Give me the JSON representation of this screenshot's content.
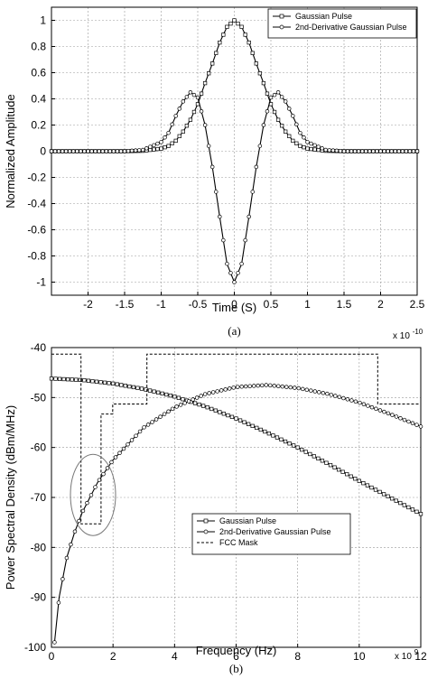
{
  "chart_data": [
    {
      "type": "line",
      "title": "",
      "xlabel": "Time (S)",
      "ylabel": "Normalized Amplitude",
      "x_exponent_label": "x 10",
      "x_exponent": "-10",
      "xlim": [
        -2.5,
        2.5
      ],
      "ylim": [
        -1.1,
        1.1
      ],
      "xticks": [
        -2,
        -1.5,
        -1,
        -0.5,
        0,
        0.5,
        1,
        1.5,
        2,
        2.5
      ],
      "xtick_labels": [
        "-2",
        "-1.5",
        "-1",
        "-0.5",
        "0",
        "0.5",
        "1",
        "1.5",
        "2",
        "2.5"
      ],
      "yticks": [
        -1,
        -0.8,
        -0.6,
        -0.4,
        -0.2,
        0,
        0.2,
        0.4,
        0.6,
        0.8,
        1
      ],
      "ytick_labels": [
        "-1",
        "-0.8",
        "-0.6",
        "-0.4",
        "-0.2",
        "0",
        "0.2",
        "0.4",
        "0.6",
        "0.8",
        "1"
      ],
      "grid": true,
      "legend_position": "top-right",
      "caption": "(a)",
      "series": [
        {
          "name": "Gaussian Pulse",
          "marker": "square",
          "x": [
            -2.5,
            -2.0,
            -1.5,
            -1.25,
            -1.0,
            -0.9,
            -0.8,
            -0.7,
            -0.6,
            -0.5,
            -0.4,
            -0.3,
            -0.2,
            -0.1,
            0.0,
            0.1,
            0.2,
            0.3,
            0.4,
            0.5,
            0.6,
            0.7,
            0.8,
            0.9,
            1.0,
            1.25,
            1.5,
            2.0,
            2.5
          ],
          "y": [
            0.0,
            0.0,
            0.0,
            0.003,
            0.02,
            0.04,
            0.08,
            0.15,
            0.24,
            0.36,
            0.52,
            0.67,
            0.83,
            0.95,
            1.0,
            0.95,
            0.83,
            0.67,
            0.52,
            0.36,
            0.24,
            0.15,
            0.08,
            0.04,
            0.02,
            0.003,
            0.0,
            0.0,
            0.0
          ]
        },
        {
          "name": "2nd-Derivative Gaussian Pulse",
          "marker": "circle",
          "x": [
            -2.5,
            -2.0,
            -1.5,
            -1.25,
            -1.0,
            -0.9,
            -0.8,
            -0.7,
            -0.6,
            -0.5,
            -0.4,
            -0.3,
            -0.2,
            -0.1,
            0.0,
            0.1,
            0.2,
            0.3,
            0.4,
            0.5,
            0.6,
            0.7,
            0.8,
            0.9,
            1.0,
            1.25,
            1.5,
            2.0,
            2.5
          ],
          "y": [
            0.0,
            0.0,
            0.0,
            0.01,
            0.07,
            0.14,
            0.27,
            0.38,
            0.45,
            0.41,
            0.2,
            -0.12,
            -0.5,
            -0.86,
            -1.0,
            -0.86,
            -0.5,
            -0.12,
            0.2,
            0.41,
            0.45,
            0.38,
            0.27,
            0.14,
            0.07,
            0.01,
            0.0,
            0.0,
            0.0
          ]
        }
      ]
    },
    {
      "type": "line",
      "title": "",
      "xlabel": "Frequency (Hz)",
      "ylabel": "Power Spectral Density (dBm/MHz)",
      "x_exponent_label": "x 10",
      "x_exponent": "9",
      "xlim": [
        0,
        12
      ],
      "ylim": [
        -100,
        -40
      ],
      "xticks": [
        0,
        2,
        4,
        6,
        8,
        10,
        12
      ],
      "xtick_labels": [
        "0",
        "2",
        "4",
        "6",
        "8",
        "10",
        "12"
      ],
      "yticks": [
        -100,
        -90,
        -80,
        -70,
        -60,
        -50,
        -40
      ],
      "ytick_labels": [
        "-100",
        "-90",
        "-80",
        "-70",
        "-60",
        "-50",
        "-40"
      ],
      "grid": true,
      "legend_position": "lower-center",
      "caption": "(b)",
      "series": [
        {
          "name": "Gaussian Pulse",
          "marker": "square",
          "x": [
            0,
            1,
            2,
            3,
            4,
            5,
            6,
            7,
            8,
            9,
            10,
            11,
            12
          ],
          "y": [
            -46.2,
            -46.5,
            -47.2,
            -48.3,
            -49.8,
            -51.8,
            -54.2,
            -57.0,
            -60.0,
            -63.3,
            -66.7,
            -70.0,
            -73.3
          ]
        },
        {
          "name": "2nd-Derivative Gaussian Pulse",
          "marker": "circle",
          "x": [
            0.1,
            0.25,
            0.5,
            0.75,
            1,
            1.5,
            2,
            3,
            4,
            5,
            6,
            7,
            8,
            9,
            10,
            11,
            12
          ],
          "y": [
            -99,
            -90,
            -82,
            -77,
            -73,
            -67,
            -62.5,
            -56,
            -52,
            -49.3,
            -47.9,
            -47.5,
            -48.1,
            -49.3,
            -51.0,
            -53.3,
            -55.8
          ]
        },
        {
          "name": "FCC Mask",
          "marker": "none",
          "x": [
            0,
            0.96,
            0.96,
            1.61,
            1.61,
            1.99,
            1.99,
            3.1,
            3.1,
            10.6,
            10.6,
            12
          ],
          "y": [
            -41.3,
            -41.3,
            -75.3,
            -75.3,
            -53.3,
            -53.3,
            -51.3,
            -51.3,
            -41.3,
            -41.3,
            -51.3,
            -51.3
          ]
        }
      ]
    }
  ]
}
